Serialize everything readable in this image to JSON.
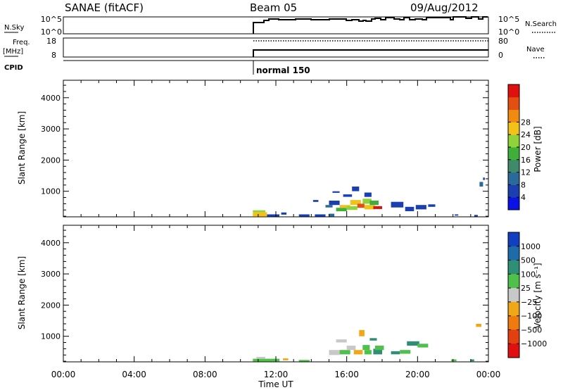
{
  "header": {
    "station": "SANAE (fitACF)",
    "beam": "Beam 05",
    "date": "09/Aug/2012"
  },
  "sky_panel": {
    "label": "N.Sky",
    "left_ticks": [
      "10^5",
      "10^0"
    ],
    "right_ticks": [
      "10^5",
      "10^0"
    ],
    "right_label": "N.Search"
  },
  "freq_panel": {
    "label_line1": "Freq.",
    "label_line2": "[MHz]",
    "left_ticks": [
      "18",
      "8"
    ],
    "right_ticks": [
      "80",
      "0"
    ],
    "right_label": "Nave"
  },
  "cpid_panel": {
    "label": "CPID",
    "program_label": "normal 150"
  },
  "colors": {
    "power": [
      "#0a12e6",
      "#1a3fb0",
      "#2a6a9a",
      "#3f8a6a",
      "#3fae3a",
      "#8fd23a",
      "#f2c21a",
      "#ef8a12",
      "#e24f10",
      "#e01010"
    ],
    "velocity": [
      "#123fbf",
      "#1f6aa8",
      "#2f8f76",
      "#4fc04a",
      "#c8c8c8",
      "#f0a818",
      "#ef7a10",
      "#e24010",
      "#e01010"
    ]
  },
  "chart_data": [
    {
      "type": "heatmap",
      "name": "power-panel",
      "xlabel": "",
      "ylabel": "Slant Range [km]",
      "x_ticks": [
        "00:00",
        "04:00",
        "08:00",
        "12:00",
        "16:00",
        "20:00",
        "00:00"
      ],
      "y_ticks": [
        "1000",
        "2000",
        "3000",
        "4000"
      ],
      "xlim": [
        0,
        24
      ],
      "ylim": [
        180,
        4560
      ],
      "colorbar": {
        "label": "Power [dB]",
        "ticks": [
          "4",
          "8",
          "12",
          "16",
          "20",
          "24",
          "28"
        ],
        "range": [
          0,
          30
        ]
      },
      "cells": [
        [
          10.7,
          11.5,
          190,
          330,
          20
        ],
        [
          10.7,
          11.4,
          330,
          390,
          16
        ],
        [
          11.5,
          12.2,
          190,
          260,
          4
        ],
        [
          12.3,
          12.6,
          250,
          320,
          4
        ],
        [
          13.3,
          13.9,
          190,
          260,
          4
        ],
        [
          14.2,
          14.8,
          190,
          260,
          4
        ],
        [
          15.0,
          15.3,
          190,
          280,
          8
        ],
        [
          15.2,
          15.6,
          950,
          1000,
          4
        ],
        [
          15.4,
          16.0,
          360,
          470,
          12
        ],
        [
          15.6,
          16.2,
          470,
          560,
          18
        ],
        [
          16.0,
          16.6,
          400,
          520,
          16
        ],
        [
          16.2,
          16.8,
          560,
          720,
          20
        ],
        [
          16.6,
          17.0,
          470,
          600,
          24
        ],
        [
          16.9,
          17.4,
          600,
          760,
          16
        ],
        [
          17.0,
          17.6,
          420,
          560,
          20
        ],
        [
          17.3,
          17.8,
          560,
          700,
          12
        ],
        [
          17.5,
          18.0,
          430,
          520,
          28
        ],
        [
          15.0,
          15.6,
          560,
          700,
          4
        ],
        [
          14.8,
          15.2,
          480,
          560,
          8
        ],
        [
          16.3,
          16.7,
          1000,
          1150,
          4
        ],
        [
          17.0,
          17.4,
          820,
          960,
          4
        ],
        [
          14.1,
          14.4,
          660,
          720,
          4
        ],
        [
          15.8,
          16.3,
          820,
          900,
          4
        ],
        [
          18.5,
          19.2,
          480,
          660,
          4
        ],
        [
          19.3,
          19.8,
          360,
          500,
          4
        ],
        [
          19.9,
          20.5,
          420,
          560,
          4
        ],
        [
          20.6,
          21.0,
          500,
          580,
          4
        ],
        [
          22.1,
          22.3,
          220,
          260,
          4
        ],
        [
          23.2,
          23.4,
          190,
          240,
          4
        ],
        [
          23.5,
          23.7,
          1150,
          1300,
          8
        ],
        [
          23.7,
          23.8,
          1360,
          1440,
          4
        ]
      ]
    },
    {
      "type": "heatmap",
      "name": "velocity-panel",
      "xlabel": "Time UT",
      "ylabel": "Slant Range [km]",
      "x_ticks": [
        "00:00",
        "04:00",
        "08:00",
        "12:00",
        "16:00",
        "20:00",
        "00:00"
      ],
      "y_ticks": [
        "1000",
        "2000",
        "3000",
        "4000"
      ],
      "xlim": [
        0,
        24
      ],
      "ylim": [
        180,
        4560
      ],
      "colorbar": {
        "label": "Velocity [m s⁻¹]",
        "ticks": [
          "1000",
          "500",
          "100",
          "25",
          "−25",
          "−100",
          "−500",
          "−1000"
        ],
        "range": [
          -1250,
          1250
        ]
      },
      "cells": [
        [
          10.7,
          12.2,
          190,
          280,
          0
        ],
        [
          10.9,
          11.4,
          280,
          340,
          -60
        ],
        [
          12.4,
          12.7,
          230,
          290,
          -200
        ],
        [
          13.3,
          13.9,
          190,
          240,
          0
        ],
        [
          15.0,
          15.6,
          400,
          560,
          -60
        ],
        [
          15.6,
          16.2,
          420,
          560,
          0
        ],
        [
          15.4,
          16.0,
          800,
          900,
          -60
        ],
        [
          16.0,
          16.5,
          560,
          700,
          -60
        ],
        [
          16.4,
          16.9,
          420,
          560,
          -200
        ],
        [
          16.7,
          17.0,
          1000,
          1200,
          -300
        ],
        [
          16.9,
          17.3,
          560,
          720,
          0
        ],
        [
          17.0,
          17.4,
          420,
          560,
          0
        ],
        [
          17.3,
          17.7,
          860,
          940,
          60
        ],
        [
          17.5,
          18.0,
          420,
          600,
          60
        ],
        [
          17.6,
          18.1,
          560,
          700,
          0
        ],
        [
          18.5,
          19.0,
          420,
          520,
          60
        ],
        [
          19.0,
          19.6,
          440,
          560,
          0
        ],
        [
          19.4,
          20.1,
          700,
          840,
          60
        ],
        [
          20.0,
          20.6,
          640,
          760,
          0
        ],
        [
          21.9,
          22.2,
          200,
          260,
          0
        ],
        [
          23.3,
          23.6,
          1300,
          1400,
          -400
        ],
        [
          23.0,
          23.2,
          200,
          260,
          60
        ]
      ]
    }
  ]
}
